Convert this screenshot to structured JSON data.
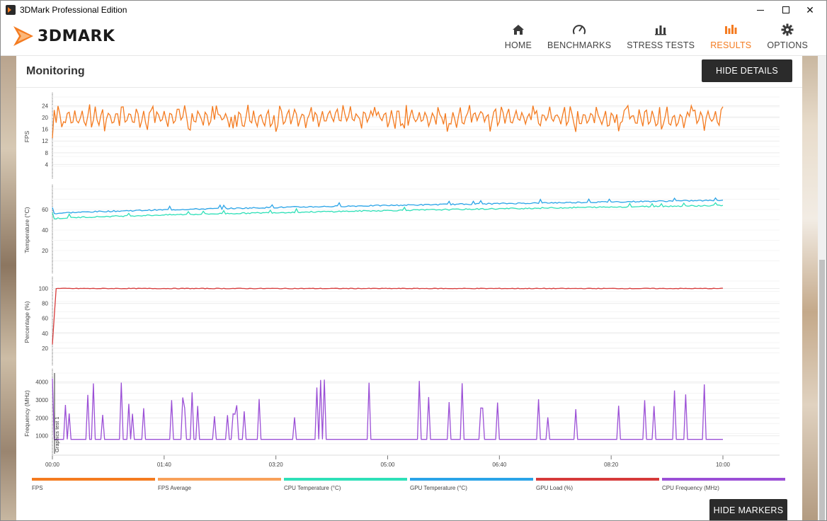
{
  "window": {
    "title": "3DMark Professional Edition"
  },
  "brand": {
    "logo_text": "3DMARK"
  },
  "nav": [
    {
      "label": "HOME",
      "icon": "home-icon"
    },
    {
      "label": "BENCHMARKS",
      "icon": "gauge-icon"
    },
    {
      "label": "STRESS TESTS",
      "icon": "bar-chart-icon"
    },
    {
      "label": "RESULTS",
      "icon": "results-icon",
      "active": true
    },
    {
      "label": "OPTIONS",
      "icon": "gear-icon"
    }
  ],
  "accent_color": "#f47b20",
  "panel": {
    "title": "Monitoring",
    "hide_details": "HIDE DETAILS",
    "hide_markers": "HIDE MARKERS"
  },
  "marker": {
    "label": "Graphics test 1"
  },
  "chart_data": [
    {
      "type": "line",
      "ylabel": "FPS",
      "yticks": [
        4,
        8,
        12,
        16,
        20,
        24
      ],
      "ylim": [
        0,
        27
      ],
      "series": [
        {
          "name": "FPS",
          "color": "#f47b20",
          "base": 20,
          "amp": 3,
          "spike": 13
        }
      ]
    },
    {
      "type": "line",
      "ylabel": "Temperature (°C)",
      "yticks": [
        20,
        40,
        60
      ],
      "ylim": [
        0,
        80
      ],
      "series": [
        {
          "name": "GPU Temperature (°C)",
          "color": "#2aa4e8",
          "start": 56,
          "end": 69
        },
        {
          "name": "CPU Temperature (°C)",
          "color": "#2ee0b8",
          "start": 51,
          "end": 64
        }
      ]
    },
    {
      "type": "line",
      "ylabel": "Percentage (%)",
      "yticks": [
        20,
        40,
        60,
        80,
        100
      ],
      "ylim": [
        0,
        110
      ],
      "series": [
        {
          "name": "GPU Load (%)",
          "color": "#d63a3a",
          "start": 25,
          "value": 100
        }
      ]
    },
    {
      "type": "line",
      "ylabel": "Frequency (MHz)",
      "yticks": [
        1000,
        2000,
        3000,
        4000
      ],
      "ylim": [
        0,
        4500
      ],
      "series": [
        {
          "name": "CPU Frequency (MHz)",
          "color": "#9b4fd6",
          "base": 800,
          "peak": 4200
        }
      ]
    }
  ],
  "x_axis": {
    "ticks": [
      "00:00",
      "01:40",
      "03:20",
      "05:00",
      "06:40",
      "08:20",
      "10:00"
    ]
  },
  "legend": [
    {
      "label": "FPS",
      "color": "#f47b20"
    },
    {
      "label": "FPS Average",
      "color": "#f8a15a"
    },
    {
      "label": "CPU Temperature (°C)",
      "color": "#2ee0b8"
    },
    {
      "label": "GPU Temperature (°C)",
      "color": "#2aa4e8"
    },
    {
      "label": "GPU Load (%)",
      "color": "#d63a3a"
    },
    {
      "label": "CPU Frequency (MHz)",
      "color": "#9b4fd6"
    }
  ]
}
